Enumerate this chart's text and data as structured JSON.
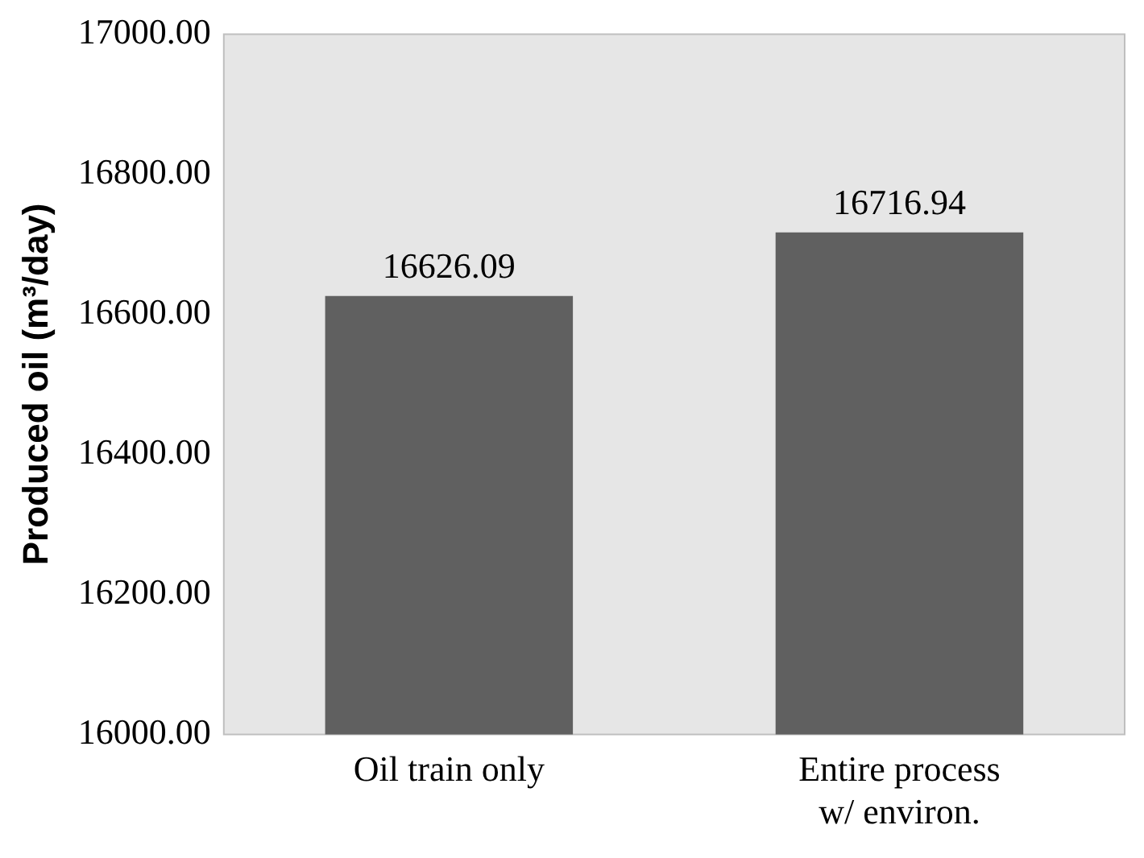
{
  "chart_data": {
    "type": "bar",
    "ylabel": "Produced oil (m³/day)",
    "categories": [
      "Oil train only",
      "Entire process\nw/ environ."
    ],
    "values": [
      16626.09,
      16716.94
    ],
    "color": "#606060",
    "ylim": [
      16000,
      17000
    ],
    "yticks": [
      {
        "value": 16000,
        "label": "16000.00"
      },
      {
        "value": 16200,
        "label": "16200.00"
      },
      {
        "value": 16400,
        "label": "16400.00"
      },
      {
        "value": 16600,
        "label": "16600.00"
      },
      {
        "value": 16800,
        "label": "16800.00"
      },
      {
        "value": 17000,
        "label": "17000.00"
      }
    ],
    "grid": false,
    "legend": false,
    "data_labels": true
  }
}
